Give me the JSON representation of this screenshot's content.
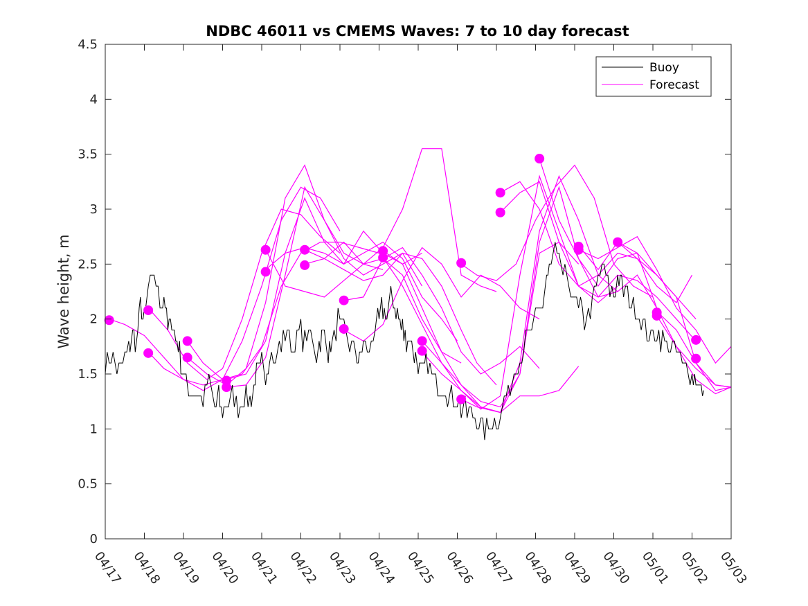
{
  "colors": {
    "buoy": "#000000",
    "forecast": "#ff00ff",
    "axis": "#262626"
  },
  "chart_data": {
    "type": "line",
    "title": "NDBC 46011 vs CMEMS Waves: 7 to 10 day forecast",
    "ylabel": "Wave height, m",
    "xlabel": "",
    "xlim": [
      0,
      16
    ],
    "ylim": [
      0,
      4.5
    ],
    "x_tick_labels": [
      "04/17",
      "04/18",
      "04/19",
      "04/20",
      "04/21",
      "04/22",
      "04/23",
      "04/24",
      "04/25",
      "04/26",
      "04/27",
      "04/28",
      "04/29",
      "04/30",
      "05/01",
      "05/02",
      "05/03"
    ],
    "y_ticks": [
      0,
      0.5,
      1,
      1.5,
      2,
      2.5,
      3,
      3.5,
      4,
      4.5
    ],
    "y_tick_labels": [
      "0",
      "0.5",
      "1",
      "1.5",
      "2",
      "2.5",
      "3",
      "3.5",
      "4",
      "4.5"
    ],
    "x_units": "days since 04/17",
    "legend": {
      "placement": "top-right",
      "entries": [
        "Buoy",
        "Forecast"
      ]
    },
    "buoy": {
      "name": "Buoy",
      "x": [
        0,
        0.15,
        0.3,
        0.45,
        0.6,
        0.7,
        0.8,
        0.9,
        1.0,
        1.1,
        1.25,
        1.4,
        1.5,
        1.6,
        1.7,
        1.8,
        1.9,
        2.0,
        2.1,
        2.2,
        2.35,
        2.5,
        2.65,
        2.8,
        2.9,
        3.0,
        3.1,
        3.25,
        3.4,
        3.55,
        3.7,
        3.8,
        3.9,
        4.0,
        4.1,
        4.2,
        4.35,
        4.5,
        4.65,
        4.8,
        4.95,
        5.1,
        5.25,
        5.4,
        5.5,
        5.6,
        5.7,
        5.8,
        5.95,
        6.1,
        6.25,
        6.4,
        6.5,
        6.6,
        6.75,
        6.9,
        7.0,
        7.1,
        7.2,
        7.3,
        7.4,
        7.5,
        7.6,
        7.7,
        7.8,
        7.9,
        8.0,
        8.1,
        8.2,
        8.35,
        8.5,
        8.65,
        8.8,
        8.95,
        9.1,
        9.25,
        9.4,
        9.55,
        9.7,
        9.85,
        10.0,
        10.15,
        10.3,
        10.45,
        10.6,
        10.75,
        10.9,
        11.05,
        11.15,
        11.25,
        11.35,
        11.5,
        11.65,
        11.8,
        11.95,
        12.1,
        12.25,
        12.4,
        12.55,
        12.7,
        12.85,
        13.0,
        13.1,
        13.2,
        13.35,
        13.5,
        13.65,
        13.8,
        13.95,
        14.1,
        14.25,
        14.4,
        14.55,
        14.7,
        14.85,
        15.0,
        15.1,
        15.2,
        15.3
      ],
      "y": [
        1.6,
        1.7,
        1.5,
        1.6,
        1.7,
        1.9,
        1.8,
        2.1,
        2.0,
        2.3,
        2.4,
        2.1,
        2.2,
        1.9,
        2.0,
        1.8,
        1.7,
        1.5,
        1.4,
        1.3,
        1.35,
        1.3,
        1.4,
        1.2,
        1.3,
        1.15,
        1.2,
        1.3,
        1.2,
        1.3,
        1.25,
        1.4,
        1.5,
        1.6,
        1.5,
        1.7,
        1.6,
        1.8,
        1.9,
        1.75,
        1.9,
        1.8,
        1.85,
        1.7,
        1.8,
        1.9,
        1.7,
        1.8,
        2.0,
        1.9,
        1.8,
        1.7,
        1.65,
        1.8,
        1.7,
        1.9,
        2.0,
        2.1,
        2.05,
        2.2,
        2.1,
        2.0,
        1.9,
        1.8,
        1.85,
        1.7,
        1.6,
        1.5,
        1.6,
        1.5,
        1.4,
        1.35,
        1.3,
        1.25,
        1.2,
        1.15,
        1.1,
        1.05,
        1.0,
        1.05,
        1.1,
        1.2,
        1.35,
        1.5,
        1.65,
        1.8,
        1.9,
        2.0,
        2.1,
        2.3,
        2.45,
        2.6,
        2.5,
        2.35,
        2.2,
        2.1,
        2.0,
        2.1,
        2.3,
        2.5,
        2.3,
        2.2,
        2.4,
        2.3,
        2.2,
        2.1,
        2.0,
        1.9,
        1.85,
        1.9,
        1.8,
        1.75,
        1.7,
        1.6,
        1.55,
        1.5,
        1.45,
        1.4,
        1.35
      ]
    },
    "forecast": {
      "name": "Forecast",
      "lines": [
        {
          "x": [
            0.1,
            0.5,
            1.0,
            1.5,
            2.0,
            2.5,
            3.0
          ],
          "y": [
            2.0,
            1.95,
            1.85,
            1.65,
            1.45,
            1.35,
            1.45
          ]
        },
        {
          "x": [
            1.1,
            1.5,
            2.0,
            2.5,
            3.0,
            3.5,
            4.0,
            4.5,
            5.0,
            5.5,
            6.0
          ],
          "y": [
            1.7,
            1.55,
            1.45,
            1.4,
            1.45,
            1.8,
            2.3,
            2.9,
            3.2,
            3.1,
            2.8
          ]
        },
        {
          "x": [
            1.1,
            1.6,
            2.1,
            2.6,
            3.0,
            3.5,
            4.0,
            4.5,
            5.0,
            5.5,
            6.0
          ],
          "y": [
            2.1,
            1.9,
            1.6,
            1.45,
            1.55,
            2.0,
            2.6,
            3.0,
            2.95,
            2.75,
            2.6
          ]
        },
        {
          "x": [
            2.1,
            2.5,
            3.0,
            3.5,
            4.0,
            4.5,
            5.0,
            5.5,
            6.0,
            6.5,
            7.0
          ],
          "y": [
            1.8,
            1.6,
            1.45,
            1.5,
            1.75,
            2.3,
            2.6,
            2.7,
            2.7,
            2.65,
            2.6
          ]
        },
        {
          "x": [
            2.1,
            2.6,
            3.1,
            3.6,
            4.1,
            4.6,
            5.1,
            5.6,
            6.1,
            6.6,
            7.1
          ],
          "y": [
            1.65,
            1.5,
            1.4,
            1.55,
            2.15,
            3.1,
            3.4,
            2.9,
            2.6,
            2.5,
            2.45
          ]
        },
        {
          "x": [
            3.1,
            3.6,
            4.1,
            4.6,
            5.1,
            5.6,
            6.1,
            6.6,
            7.1,
            7.6,
            8.1
          ],
          "y": [
            1.45,
            1.5,
            1.8,
            2.6,
            3.1,
            2.7,
            2.5,
            2.8,
            2.6,
            2.5,
            2.6
          ]
        },
        {
          "x": [
            3.1,
            3.6,
            4.1,
            4.6,
            5.1,
            5.6,
            6.1,
            6.6,
            7.1,
            7.6,
            8.1
          ],
          "y": [
            1.38,
            1.4,
            1.65,
            2.4,
            3.2,
            2.9,
            2.55,
            2.4,
            2.5,
            2.6,
            2.3
          ]
        },
        {
          "x": [
            4.1,
            4.6,
            5.1,
            5.6,
            6.1,
            6.6,
            7.1,
            7.6,
            8.1,
            8.6,
            9.0
          ],
          "y": [
            2.45,
            2.6,
            2.65,
            2.6,
            2.5,
            2.6,
            2.7,
            2.55,
            2.2,
            2.0,
            1.8
          ]
        },
        {
          "x": [
            4.1,
            4.6,
            5.1,
            5.6,
            6.1,
            6.6,
            7.1,
            7.6,
            8.1,
            8.6,
            9.1
          ],
          "y": [
            2.63,
            2.3,
            2.25,
            2.2,
            2.35,
            2.5,
            2.55,
            2.4,
            2.0,
            1.7,
            1.6
          ]
        },
        {
          "x": [
            5.1,
            5.6,
            6.1,
            6.6,
            7.1,
            7.6,
            8.1,
            8.6,
            9.1,
            9.5,
            10.0
          ],
          "y": [
            2.63,
            2.55,
            2.45,
            2.35,
            2.4,
            2.6,
            2.55,
            2.3,
            1.9,
            1.6,
            1.4
          ]
        },
        {
          "x": [
            5.1,
            5.6,
            6.1,
            6.6,
            7.1,
            7.6,
            8.1,
            8.6,
            9.1,
            9.6,
            10.0
          ],
          "y": [
            2.5,
            2.55,
            2.7,
            2.5,
            2.65,
            3.0,
            3.55,
            3.55,
            2.4,
            2.3,
            2.25
          ]
        },
        {
          "x": [
            6.1,
            6.6,
            7.1,
            7.6,
            8.1,
            8.6,
            9.1,
            9.6,
            10.1,
            10.6,
            11.1
          ],
          "y": [
            2.17,
            2.2,
            2.55,
            2.65,
            2.4,
            2.1,
            1.7,
            1.5,
            1.6,
            1.75,
            1.55
          ]
        },
        {
          "x": [
            6.1,
            6.6,
            7.1,
            7.6,
            8.1,
            8.6,
            9.1,
            9.6,
            10.1,
            10.6,
            11.1
          ],
          "y": [
            1.9,
            1.8,
            1.95,
            2.35,
            2.65,
            2.5,
            2.2,
            2.4,
            2.3,
            2.1,
            2.0
          ]
        },
        {
          "x": [
            7.1,
            7.6,
            8.1,
            8.6,
            9.1,
            9.6,
            10.1,
            10.6,
            11.1,
            11.6,
            12.1
          ],
          "y": [
            2.62,
            2.5,
            2.1,
            1.7,
            1.4,
            1.25,
            1.2,
            1.5,
            2.6,
            2.7,
            2.5
          ]
        },
        {
          "x": [
            7.1,
            7.6,
            8.1,
            8.6,
            9.1,
            9.6,
            10.1,
            10.6,
            11.1,
            11.6,
            12.1
          ],
          "y": [
            2.56,
            2.3,
            1.95,
            1.6,
            1.4,
            1.2,
            1.15,
            1.3,
            1.3,
            1.35,
            1.57
          ]
        },
        {
          "x": [
            8.1,
            8.6,
            9.1,
            9.6,
            10.1,
            10.6,
            11.1,
            11.6,
            12.1,
            12.6,
            13.1
          ],
          "y": [
            1.8,
            1.6,
            1.35,
            1.2,
            1.15,
            1.5,
            2.7,
            3.2,
            2.55,
            2.2,
            2.25
          ]
        },
        {
          "x": [
            8.1,
            8.6,
            9.1,
            9.6,
            10.1,
            10.6,
            11.1,
            11.6,
            12.1,
            12.6,
            13.1
          ],
          "y": [
            1.7,
            1.5,
            1.35,
            1.18,
            1.3,
            2.4,
            3.3,
            2.8,
            2.3,
            2.15,
            2.3
          ]
        },
        {
          "x": [
            9.1,
            9.5,
            10.0,
            10.5,
            11.0,
            11.5,
            12.0,
            12.5,
            13.0,
            13.5,
            14.0
          ],
          "y": [
            2.5,
            2.4,
            2.35,
            2.5,
            2.9,
            3.2,
            3.4,
            3.1,
            2.5,
            2.3,
            2.2
          ]
        },
        {
          "x": [
            9.1,
            9.5,
            10.1,
            10.6,
            11.1,
            11.6,
            12.1,
            12.6,
            13.1,
            13.6,
            14.1
          ],
          "y": [
            1.27,
            1.2,
            1.15,
            1.6,
            2.8,
            3.3,
            2.9,
            2.4,
            2.25,
            2.4,
            2.1
          ]
        },
        {
          "x": [
            10.1,
            10.6,
            11.1,
            11.6,
            12.1,
            12.6,
            13.1,
            13.6,
            14.1,
            14.6,
            15.1
          ],
          "y": [
            3.15,
            3.25,
            3.0,
            2.5,
            2.3,
            2.4,
            2.6,
            2.55,
            2.4,
            2.2,
            2.0
          ]
        },
        {
          "x": [
            10.1,
            10.6,
            11.1,
            11.6,
            12.1,
            12.6,
            13.1,
            13.6,
            14.1,
            14.6,
            15.1
          ],
          "y": [
            2.97,
            3.15,
            3.25,
            2.7,
            2.3,
            2.2,
            2.4,
            2.35,
            2.2,
            2.0,
            1.8
          ]
        },
        {
          "x": [
            11.1,
            11.6,
            12.1,
            12.6,
            13.1,
            13.6,
            14.1,
            14.6,
            15.1,
            15.6,
            16.0
          ],
          "y": [
            3.46,
            2.9,
            2.55,
            2.3,
            2.55,
            2.6,
            2.1,
            1.75,
            1.55,
            1.4,
            1.38
          ]
        },
        {
          "x": [
            12.1,
            12.6,
            13.1,
            13.6,
            14.1,
            14.6,
            15.1,
            15.6,
            16.0
          ],
          "y": [
            2.63,
            2.55,
            2.65,
            2.75,
            2.45,
            2.1,
            1.9,
            1.6,
            1.75
          ]
        },
        {
          "x": [
            12.1,
            12.6,
            13.1,
            13.6,
            14.1,
            14.6,
            15.1,
            15.6,
            16.0
          ],
          "y": [
            2.67,
            2.45,
            2.7,
            2.6,
            2.4,
            2.2,
            1.6,
            1.35,
            1.38
          ]
        },
        {
          "x": [
            13.1,
            13.6,
            14.1,
            14.6,
            15.0
          ],
          "y": [
            2.7,
            2.55,
            2.3,
            2.15,
            2.4
          ]
        },
        {
          "x": [
            14.1,
            14.6,
            15.1,
            15.6,
            16.0
          ],
          "y": [
            2.07,
            1.9,
            1.6,
            1.4,
            1.38
          ]
        },
        {
          "x": [
            14.1,
            14.6,
            15.1,
            15.6,
            16.0
          ],
          "y": [
            2.03,
            1.75,
            1.45,
            1.32,
            1.38
          ]
        }
      ],
      "markers": [
        {
          "x": 0.1,
          "y": 1.99
        },
        {
          "x": 1.1,
          "y": 2.08
        },
        {
          "x": 1.1,
          "y": 1.69
        },
        {
          "x": 2.1,
          "y": 1.8
        },
        {
          "x": 2.1,
          "y": 1.65
        },
        {
          "x": 3.1,
          "y": 1.44
        },
        {
          "x": 3.1,
          "y": 1.38
        },
        {
          "x": 4.1,
          "y": 2.63
        },
        {
          "x": 4.1,
          "y": 2.43
        },
        {
          "x": 5.1,
          "y": 2.63
        },
        {
          "x": 5.1,
          "y": 2.49
        },
        {
          "x": 6.1,
          "y": 2.17
        },
        {
          "x": 6.1,
          "y": 1.91
        },
        {
          "x": 7.1,
          "y": 2.62
        },
        {
          "x": 7.1,
          "y": 2.56
        },
        {
          "x": 8.1,
          "y": 1.8
        },
        {
          "x": 8.1,
          "y": 1.71
        },
        {
          "x": 9.1,
          "y": 2.51
        },
        {
          "x": 9.1,
          "y": 1.27
        },
        {
          "x": 10.1,
          "y": 3.15
        },
        {
          "x": 10.1,
          "y": 2.97
        },
        {
          "x": 11.1,
          "y": 3.46
        },
        {
          "x": 12.1,
          "y": 2.66
        },
        {
          "x": 12.1,
          "y": 2.63
        },
        {
          "x": 13.1,
          "y": 2.7
        },
        {
          "x": 14.1,
          "y": 2.06
        },
        {
          "x": 14.1,
          "y": 2.03
        },
        {
          "x": 15.1,
          "y": 1.81
        },
        {
          "x": 15.1,
          "y": 1.64
        }
      ]
    }
  }
}
